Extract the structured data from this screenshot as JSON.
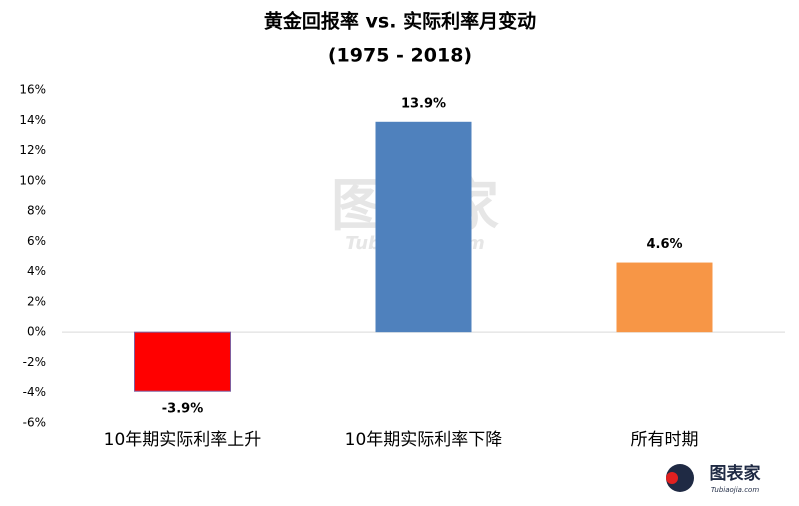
{
  "chart_data": {
    "type": "bar",
    "title": "黄金回报率 vs. 实际利率月变动",
    "subtitle": "(1975 - 2018)",
    "categories": [
      "10年期实际利率上升",
      "10年期实际利率下降",
      "所有时期"
    ],
    "values": [
      -3.9,
      13.9,
      4.6
    ],
    "value_labels": [
      "-3.9%",
      "13.9%",
      "4.6%"
    ],
    "colors": [
      "#ff0000",
      "#4f81bd",
      "#f79646"
    ],
    "ylim": [
      -6,
      16
    ],
    "yticks": [
      {
        "value": -6,
        "label": "-6%"
      },
      {
        "value": -4,
        "label": "-4%"
      },
      {
        "value": -2,
        "label": "-2%"
      },
      {
        "value": 0,
        "label": "0%"
      },
      {
        "value": 2,
        "label": "2%"
      },
      {
        "value": 4,
        "label": "4%"
      },
      {
        "value": 6,
        "label": "6%"
      },
      {
        "value": 8,
        "label": "8%"
      },
      {
        "value": 10,
        "label": "10%"
      },
      {
        "value": 12,
        "label": "12%"
      },
      {
        "value": 14,
        "label": "14%"
      },
      {
        "value": 16,
        "label": "16%"
      }
    ],
    "grid": false,
    "watermark": "图表家",
    "watermark_url": "Tubiaojia.com"
  }
}
